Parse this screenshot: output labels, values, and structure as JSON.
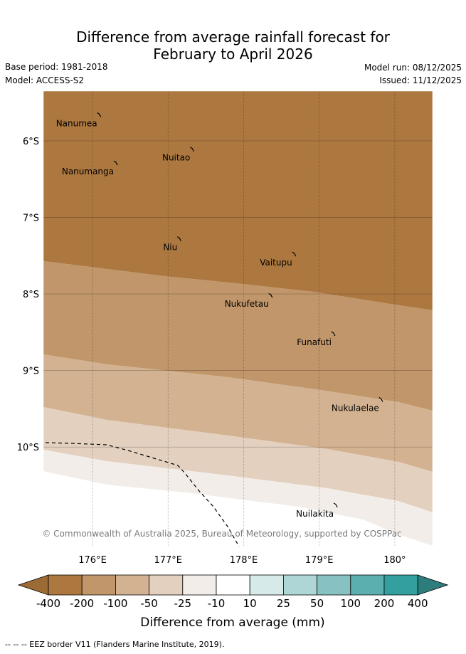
{
  "title_line1": "Difference from average rainfall forecast for",
  "title_line2": "February to April 2026",
  "base_period": "Base period: 1981-2018",
  "model": "Model: ACCESS-S2",
  "model_run": "Model run: 08/12/2025",
  "issued": "Issued: 11/12/2025",
  "copyright": "© Commonwealth of Australia 2025, Bureau of Meteorology, supported by COSPPac",
  "axes": {
    "lon_ticks": [
      "176°E",
      "177°E",
      "178°E",
      "179°E",
      "180°"
    ],
    "lat_ticks": [
      "6°S",
      "7°S",
      "8°S",
      "9°S",
      "10°S"
    ],
    "lon_range": [
      175.35,
      180.5
    ],
    "lat_range": [
      -5.35,
      -11.3
    ]
  },
  "places": [
    {
      "name": "Nanumea",
      "lon": 176.1,
      "lat": -5.66
    },
    {
      "name": "Nuitao",
      "lon": 177.33,
      "lat": -6.11
    },
    {
      "name": "Nanumanga",
      "lon": 176.32,
      "lat": -6.29
    },
    {
      "name": "Niu",
      "lon": 177.16,
      "lat": -7.28
    },
    {
      "name": "Vaitupu",
      "lon": 178.68,
      "lat": -7.48
    },
    {
      "name": "Nukufetau",
      "lon": 178.37,
      "lat": -8.02
    },
    {
      "name": "Funafuti",
      "lon": 179.2,
      "lat": -8.52
    },
    {
      "name": "Nukulaelae",
      "lon": 179.83,
      "lat": -9.38
    },
    {
      "name": "Nuilakita",
      "lon": 179.23,
      "lat": -10.76
    }
  ],
  "colorbar": {
    "tick_labels": [
      "-400",
      "-200",
      "-100",
      "-50",
      "-25",
      "-10",
      "10",
      "25",
      "50",
      "100",
      "200",
      "400"
    ],
    "colors": [
      "#9c6a34",
      "#ad7840",
      "#c0966a",
      "#d3b291",
      "#e3d0bf",
      "#f2ede8",
      "#ffffff",
      "#d6ebe9",
      "#aed6d6",
      "#87c1c1",
      "#5bafaf",
      "#349f9f",
      "#2e7d7d"
    ],
    "label": "Difference from average (mm)"
  },
  "map_bands": [
    "#ad7840",
    "#c0966a",
    "#d3b291",
    "#e3d0bf",
    "#f2ede8"
  ],
  "footer": "-- -- -- EEZ border V11 (Flanders Marine Institute, 2019)."
}
